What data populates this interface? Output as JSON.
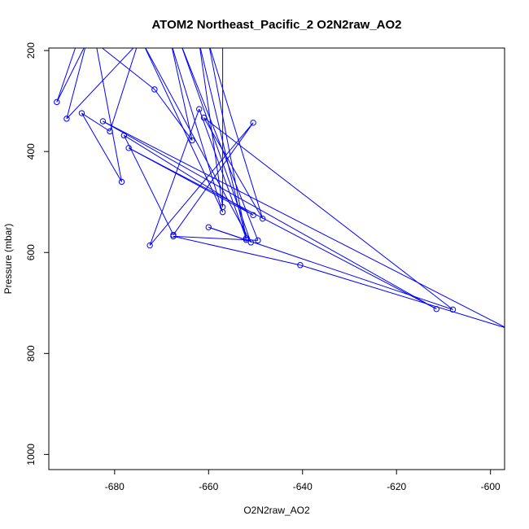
{
  "chart_data": {
    "type": "line",
    "title": "ATOM2 Northeast_Pacific_2 O2N2raw_AO2",
    "xlabel": "O2N2raw_AO2",
    "ylabel": "Pressure (mbar)",
    "xlim": [
      -694,
      -597
    ],
    "ylim": [
      1030,
      195
    ],
    "y_reversed": true,
    "xticks": [
      -680,
      -660,
      -640,
      -620,
      -600
    ],
    "yticks": [
      200,
      400,
      600,
      800,
      1000
    ],
    "grid": false,
    "legend": "none",
    "series": [
      {
        "color": "#0000ff",
        "marker": "open-circle",
        "points": [
          [
            -688,
            185
          ],
          [
            -692.3,
            302
          ],
          [
            -686,
            185
          ],
          [
            -690.2,
            335
          ],
          [
            -675,
            185
          ],
          [
            -681,
            360
          ],
          [
            -687,
            324
          ],
          [
            -678.5,
            460
          ],
          [
            -684,
            185
          ],
          [
            -671.5,
            277
          ],
          [
            -663.5,
            378
          ],
          [
            -668,
            185
          ],
          [
            -657,
            520
          ],
          [
            -674,
            185
          ],
          [
            -651,
            580
          ],
          [
            -666,
            185
          ],
          [
            -649.5,
            576
          ],
          [
            -667.5,
            568
          ],
          [
            -640.5,
            625
          ],
          [
            -596.5,
            750
          ],
          [
            -682.5,
            340
          ],
          [
            -611.5,
            712
          ],
          [
            -677,
            393
          ],
          [
            -650.5,
            526
          ],
          [
            -678,
            368
          ],
          [
            -667.5,
            565
          ],
          [
            -650.5,
            343
          ],
          [
            -672.5,
            586
          ],
          [
            -662,
            316
          ],
          [
            -652,
            572
          ],
          [
            -660,
            185
          ],
          [
            -648.5,
            533
          ],
          [
            -661,
            333
          ],
          [
            -608,
            713
          ],
          [
            -660,
            550
          ],
          [
            -652,
            575
          ],
          [
            -662,
            185
          ],
          [
            -657,
            510
          ],
          [
            -657,
            185
          ]
        ]
      }
    ]
  }
}
